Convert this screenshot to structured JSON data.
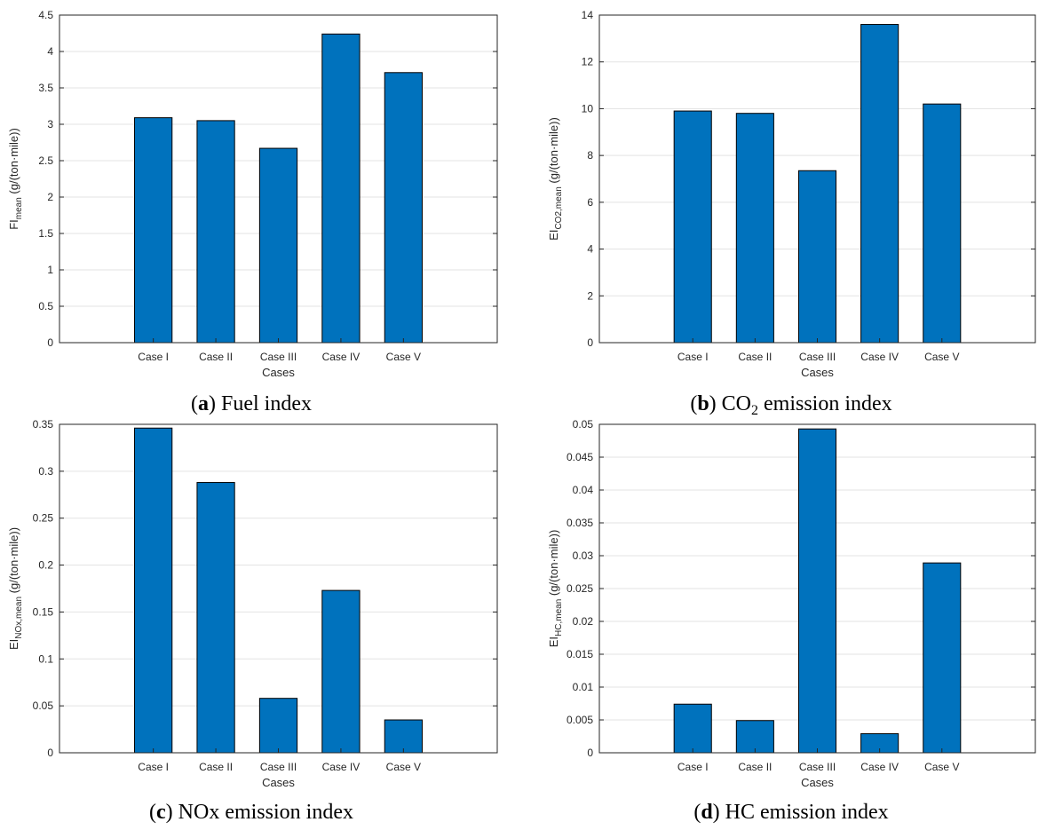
{
  "chart_data": [
    {
      "type": "bar",
      "panel_letter": "a",
      "caption_text": "Fuel index",
      "title": "",
      "xlabel": "Cases",
      "ylabel_main": "FI",
      "ylabel_sub": "mean",
      "ylabel_unit": " (g/(ton·mile))",
      "categories": [
        "Case I",
        "Case II",
        "Case III",
        "Case IV",
        "Case V"
      ],
      "values": [
        3.09,
        3.05,
        2.67,
        4.24,
        3.71
      ],
      "ylim": [
        0,
        4.5
      ],
      "yticks": [
        "0",
        "0.5",
        "1",
        "1.5",
        "2",
        "2.5",
        "3",
        "3.5",
        "4",
        "4.5"
      ],
      "grid": true,
      "bar_color": "#0072bd"
    },
    {
      "type": "bar",
      "panel_letter": "b",
      "caption_pre": "CO",
      "caption_sub": "2",
      "caption_post": " emission index",
      "title": "",
      "xlabel": "Cases",
      "ylabel_main": "EI",
      "ylabel_sub": "CO2,mean",
      "ylabel_unit": " (g/(ton·mile))",
      "categories": [
        "Case I",
        "Case II",
        "Case III",
        "Case IV",
        "Case V"
      ],
      "values": [
        9.9,
        9.8,
        7.35,
        13.6,
        10.2
      ],
      "ylim": [
        0,
        14
      ],
      "yticks": [
        "0",
        "2",
        "4",
        "6",
        "8",
        "10",
        "12",
        "14"
      ],
      "grid": true,
      "bar_color": "#0072bd"
    },
    {
      "type": "bar",
      "panel_letter": "c",
      "caption_text": "NOx emission index",
      "title": "",
      "xlabel": "Cases",
      "ylabel_main": "EI",
      "ylabel_sub": "NOx,mean",
      "ylabel_unit": " (g/(ton·mile))",
      "categories": [
        "Case I",
        "Case II",
        "Case III",
        "Case IV",
        "Case V"
      ],
      "values": [
        0.346,
        0.288,
        0.058,
        0.173,
        0.035
      ],
      "ylim": [
        0,
        0.35
      ],
      "yticks": [
        "0",
        "0.05",
        "0.1",
        "0.15",
        "0.2",
        "0.25",
        "0.3",
        "0.35"
      ],
      "grid": true,
      "bar_color": "#0072bd"
    },
    {
      "type": "bar",
      "panel_letter": "d",
      "caption_text": "HC emission index",
      "title": "",
      "xlabel": "Cases",
      "ylabel_main": "EI",
      "ylabel_sub": "HC,mean",
      "ylabel_unit": " (g/(ton·mile))",
      "categories": [
        "Case I",
        "Case II",
        "Case III",
        "Case IV",
        "Case V"
      ],
      "values": [
        0.0074,
        0.0049,
        0.0493,
        0.0029,
        0.0289
      ],
      "ylim": [
        0,
        0.05
      ],
      "yticks": [
        "0",
        "0.005",
        "0.01",
        "0.015",
        "0.02",
        "0.025",
        "0.03",
        "0.035",
        "0.04",
        "0.045",
        "0.05"
      ],
      "grid": true,
      "bar_color": "#0072bd"
    }
  ]
}
